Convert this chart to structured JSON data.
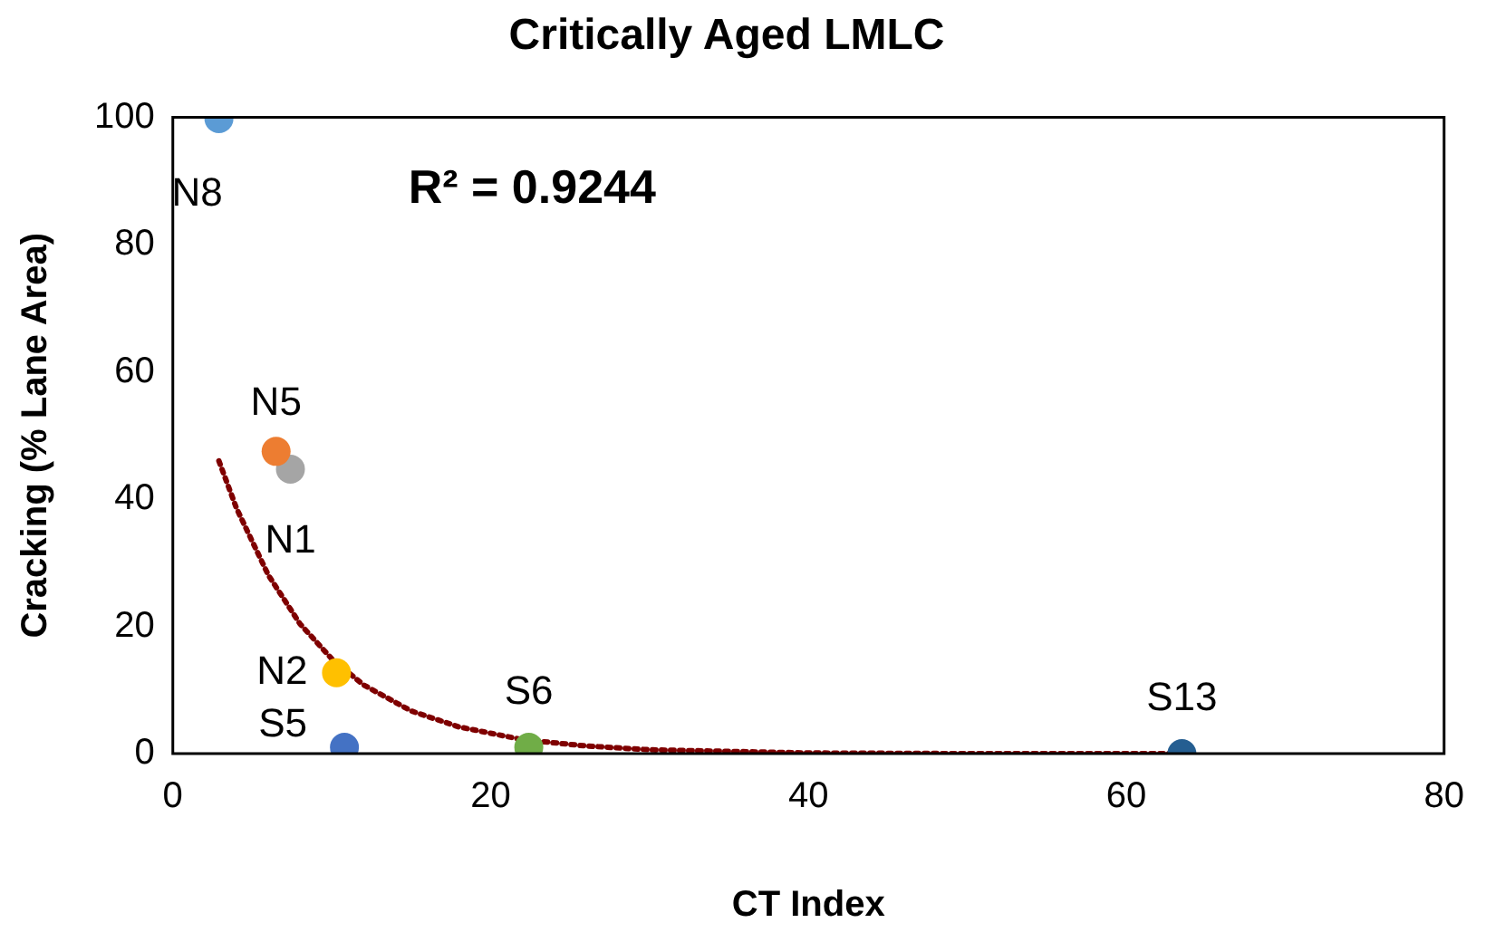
{
  "chart_data": {
    "type": "scatter",
    "title": "Critically Aged LMLC",
    "xlabel": "CT Index",
    "ylabel": "Cracking (% Lane Area)",
    "xlim": [
      0,
      80
    ],
    "xticks": [
      0,
      20,
      40,
      60,
      80
    ],
    "ylim": [
      0,
      100
    ],
    "yticks": [
      0,
      20,
      40,
      60,
      80,
      100
    ],
    "grid": false,
    "legend": false,
    "marker": "circle",
    "annotations": [
      "R² = 0.9244"
    ],
    "series": [
      {
        "name": "N8",
        "color": "#5b9bd5",
        "x": [
          2.9
        ],
        "values": [
          99.8
        ]
      },
      {
        "name": "N5",
        "color": "#ed7d31",
        "x": [
          6.5
        ],
        "values": [
          47.5
        ]
      },
      {
        "name": "N1",
        "color": "#a5a5a5",
        "x": [
          7.4
        ],
        "values": [
          44.7
        ]
      },
      {
        "name": "N2",
        "color": "#ffc000",
        "x": [
          10.3
        ],
        "values": [
          12.7
        ]
      },
      {
        "name": "S5",
        "color": "#4472c4",
        "x": [
          10.8
        ],
        "values": [
          1
        ]
      },
      {
        "name": "S6",
        "color": "#70ad47",
        "x": [
          22.4
        ],
        "values": [
          1
        ]
      },
      {
        "name": "S13",
        "color": "#255e91",
        "x": [
          63.5
        ],
        "values": [
          0
        ]
      },
      {
        "type": "line",
        "color": "#7f0000",
        "line_style": "dotted",
        "marker": "none",
        "x": [
          2.9,
          4,
          6,
          8,
          10,
          12,
          15,
          18,
          22,
          26,
          30,
          40,
          50,
          63.5
        ],
        "values": [
          46,
          38.6,
          28.1,
          20.4,
          14.9,
          10.8,
          6.7,
          4.2,
          2.2,
          1.2,
          0.6,
          0.1,
          0,
          0
        ]
      }
    ]
  }
}
